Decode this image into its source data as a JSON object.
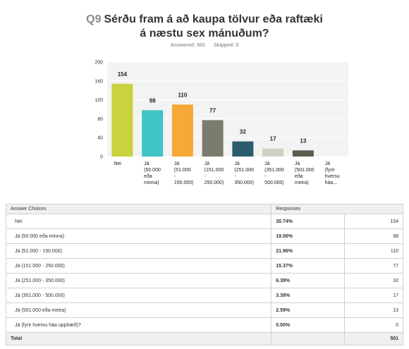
{
  "question": {
    "number": "Q9",
    "title_line1": "Sérðu fram á að kaupa tölvur eða raftæki",
    "title_line2": "á næstu sex mánuðum?",
    "answered": "Answered: 501",
    "skipped": "Skipped: 0"
  },
  "chart_data": {
    "type": "bar",
    "categories": [
      [
        "Nei"
      ],
      [
        "Já",
        "(50.000",
        "eða",
        "minna)"
      ],
      [
        "Já",
        "(51.000",
        "-",
        "150.000)"
      ],
      [
        "Já",
        "(151.000",
        "-",
        "250.000)"
      ],
      [
        "Já",
        "(251.000",
        "-",
        "350.000)"
      ],
      [
        "Já",
        "(351.000",
        "-",
        "500.000)"
      ],
      [
        "Já",
        "(501.000",
        "eða",
        "meira)"
      ],
      [
        "Já",
        "(fyrir",
        "hversu",
        "háa..."
      ]
    ],
    "values": [
      154,
      98,
      110,
      77,
      32,
      17,
      13,
      0
    ],
    "data_labels": [
      "154",
      "98",
      "110",
      "77",
      "32",
      "17",
      "13",
      ""
    ],
    "colors": [
      "#c9d33e",
      "#3ec4c4",
      "#f5a936",
      "#7b7b6e",
      "#2b5c6e",
      "#cfcfc5",
      "#5a5d4d",
      "#b0b0b0"
    ],
    "ylim": [
      0,
      200
    ],
    "yticks": [
      "0",
      "40",
      "80",
      "120",
      "160",
      "200"
    ],
    "ytick_values": [
      0,
      40,
      80,
      120,
      160,
      200
    ],
    "grid": true
  },
  "table": {
    "headers": [
      "Answer Choices",
      "Responses",
      ""
    ],
    "rows": [
      {
        "choice": "Nei",
        "pct": "30.74%",
        "count": "154"
      },
      {
        "choice": "Já  (50.000 eða minna)",
        "pct": "19.56%",
        "count": "98"
      },
      {
        "choice": "Já  (51.000 - 150.000)",
        "pct": "21.96%",
        "count": "110"
      },
      {
        "choice": "Já  (151.000 - 250.000)",
        "pct": "15.37%",
        "count": "77"
      },
      {
        "choice": "Já  (251.000 - 350.000)",
        "pct": "6.39%",
        "count": "32"
      },
      {
        "choice": "Já  (351.000 - 500.000)",
        "pct": "3.39%",
        "count": "17"
      },
      {
        "choice": "Já  (501.000  eða meira)",
        "pct": "2.59%",
        "count": "13"
      },
      {
        "choice": "Já (fyrir hversu háa upphæð)?",
        "pct": "0.00%",
        "count": "0"
      }
    ],
    "total_label": "Total",
    "total_count": "501"
  }
}
